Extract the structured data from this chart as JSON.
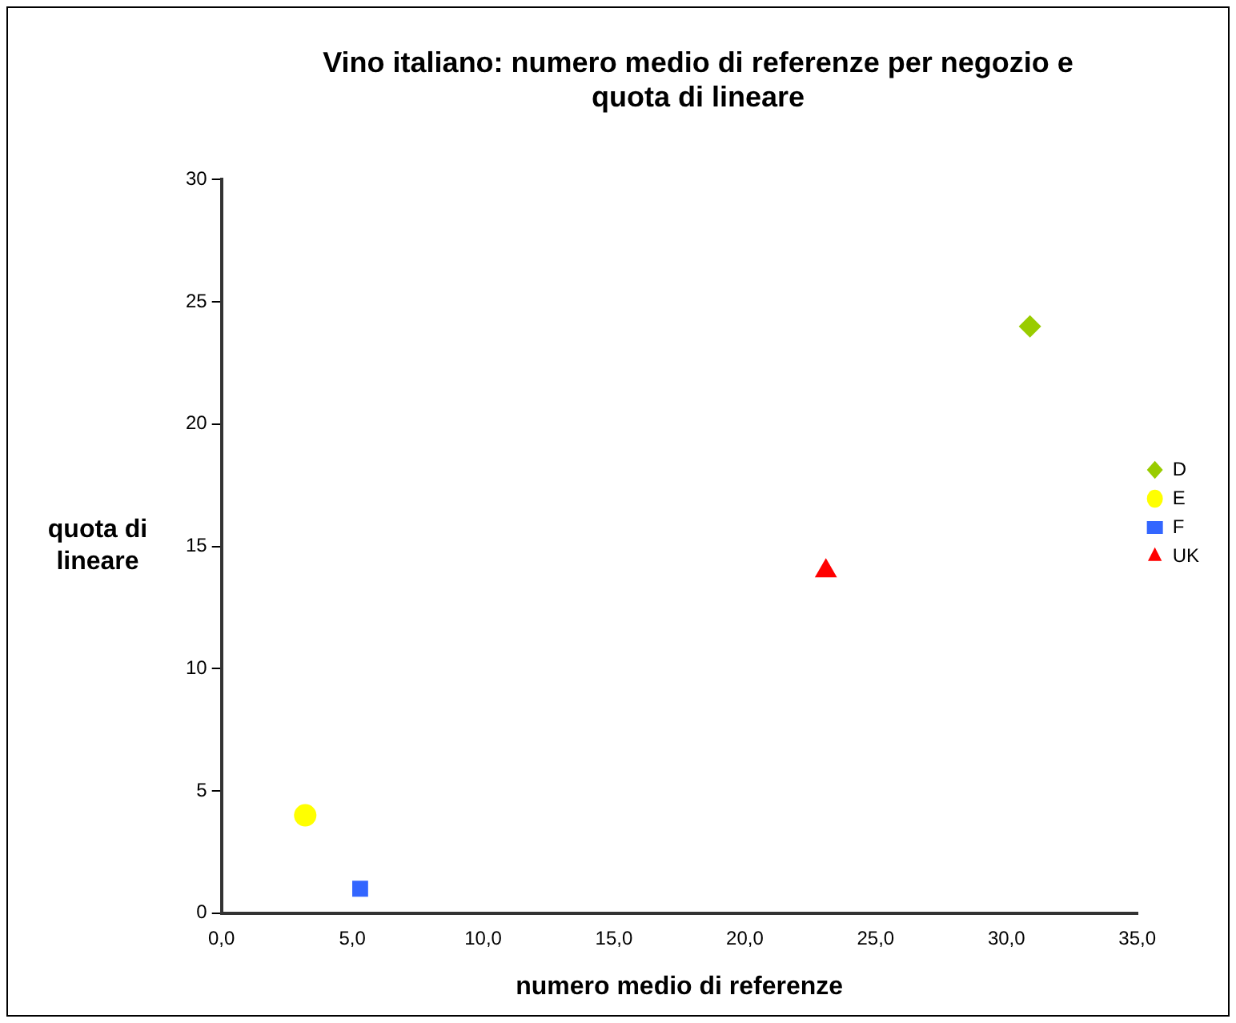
{
  "chart_data": {
    "type": "scatter",
    "title": "Vino italiano: numero medio di referenze per negozio e quota di lineare",
    "xlabel": "numero medio di referenze",
    "ylabel": "quota di lineare",
    "series": [
      {
        "name": "D",
        "color": "#99cc00",
        "marker": "diamond",
        "x": [
          30.9
        ],
        "values": [
          24
        ]
      },
      {
        "name": "E",
        "color": "#ffff00",
        "marker": "circle",
        "x": [
          3.2
        ],
        "values": [
          4
        ]
      },
      {
        "name": "F",
        "color": "#3366ff",
        "marker": "square",
        "x": [
          5.3
        ],
        "values": [
          1
        ]
      },
      {
        "name": "UK",
        "color": "#ff0000",
        "marker": "triangle",
        "x": [
          23.1
        ],
        "values": [
          14
        ]
      }
    ],
    "xlim": [
      0,
      35
    ],
    "xticks": [
      {
        "value": 0,
        "label": "0,0"
      },
      {
        "value": 5,
        "label": "5,0"
      },
      {
        "value": 10,
        "label": "10,0"
      },
      {
        "value": 15,
        "label": "15,0"
      },
      {
        "value": 20,
        "label": "20,0"
      },
      {
        "value": 25,
        "label": "25,0"
      },
      {
        "value": 30,
        "label": "30,0"
      },
      {
        "value": 35,
        "label": "35,0"
      }
    ],
    "ylim": [
      0,
      30
    ],
    "yticks": [
      0,
      5,
      10,
      15,
      20,
      25,
      30
    ],
    "grid": false,
    "legend": "right"
  }
}
